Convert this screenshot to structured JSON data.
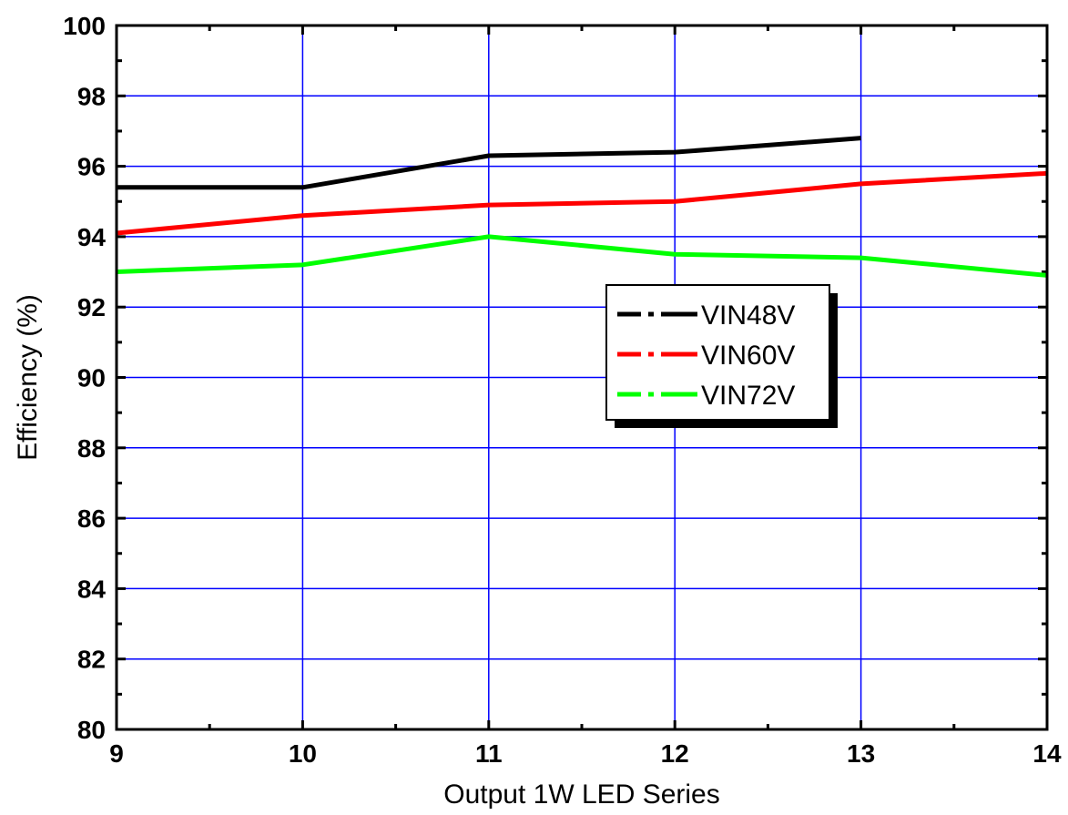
{
  "chart_data": {
    "type": "line",
    "title": "",
    "xlabel": "Output 1W LED Series",
    "ylabel": "Efficiency (%)",
    "xlim": [
      9,
      14
    ],
    "ylim": [
      80,
      100
    ],
    "xticks": [
      "9",
      "10",
      "11",
      "12",
      "13",
      "14"
    ],
    "yticks": [
      "80",
      "82",
      "84",
      "86",
      "88",
      "90",
      "92",
      "94",
      "96",
      "98",
      "100"
    ],
    "grid": true,
    "grid_color": "#0000ff",
    "legend_position": "center-right",
    "series": [
      {
        "name": "VIN48V",
        "color": "#000000",
        "x": [
          9,
          10,
          11,
          12,
          13
        ],
        "y": [
          95.4,
          95.4,
          96.3,
          96.4,
          96.8
        ]
      },
      {
        "name": "VIN60V",
        "color": "#ff0000",
        "x": [
          9,
          10,
          11,
          12,
          13,
          14
        ],
        "y": [
          94.1,
          94.6,
          94.9,
          95.0,
          95.5,
          95.8
        ]
      },
      {
        "name": "VIN72V",
        "color": "#00ff00",
        "x": [
          9,
          10,
          11,
          12,
          13,
          14
        ],
        "y": [
          93.0,
          93.2,
          94.0,
          93.5,
          93.4,
          92.9
        ]
      }
    ]
  }
}
